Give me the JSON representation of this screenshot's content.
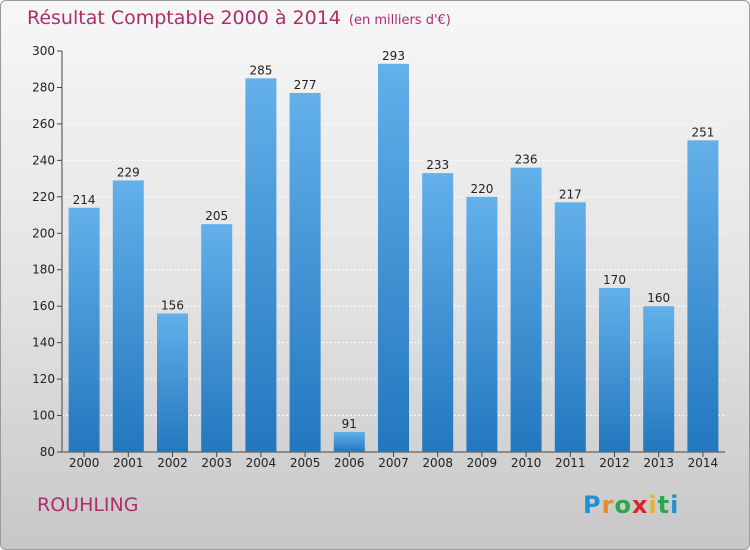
{
  "title": "Résultat Comptable 2000 à 2014",
  "unit_note": "(en milliers d'€)",
  "commune": "ROUHLING",
  "brand": {
    "letters": [
      "P",
      "r",
      "o",
      "x",
      "i",
      "t",
      "i"
    ],
    "colors": [
      "#1f8fd6",
      "#e8892a",
      "#2aa84a",
      "#d8262a",
      "#e8b22a",
      "#2aa84a",
      "#1f8fd6"
    ]
  },
  "colors": {
    "bar_top": "#63b0ea",
    "bar_bottom": "#2277be",
    "title": "#b02c6a",
    "label": "#222222"
  },
  "chart_data": {
    "type": "bar",
    "title": "Résultat Comptable 2000 à 2014 (en milliers d'€)",
    "xlabel": "",
    "ylabel": "",
    "categories": [
      "2000",
      "2001",
      "2002",
      "2003",
      "2004",
      "2005",
      "2006",
      "2007",
      "2008",
      "2009",
      "2010",
      "2011",
      "2012",
      "2013",
      "2014"
    ],
    "values": [
      214,
      229,
      156,
      205,
      285,
      277,
      91,
      293,
      233,
      220,
      236,
      217,
      170,
      160,
      251
    ],
    "ylim": [
      80,
      300
    ],
    "yticks": [
      80,
      100,
      120,
      140,
      160,
      180,
      200,
      220,
      240,
      260,
      280,
      300
    ],
    "grid": true,
    "data_labels": true
  }
}
